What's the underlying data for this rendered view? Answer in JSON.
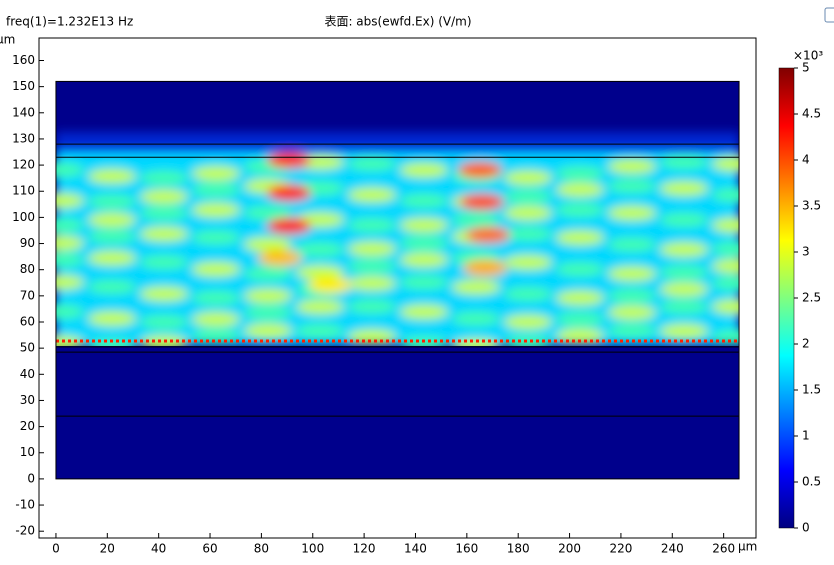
{
  "chart_data": {
    "type": "surface",
    "title": "表面: abs(ewfd.Ex) (V/m)",
    "subtitle": "freq(1)=1.232E13 Hz",
    "x_label": "μm",
    "y_label": "μm",
    "xlim": [
      -6.6,
      272.6
    ],
    "ylim": [
      -22.6,
      168.6
    ],
    "xticks": [
      0,
      20,
      40,
      60,
      80,
      100,
      120,
      140,
      160,
      180,
      200,
      220,
      240,
      260
    ],
    "yticks": [
      -20,
      -10,
      0,
      10,
      20,
      30,
      40,
      50,
      60,
      70,
      80,
      90,
      100,
      110,
      120,
      130,
      140,
      150,
      160
    ],
    "domain": {
      "x": [
        0,
        266
      ],
      "y": [
        0,
        152
      ]
    },
    "boundaries": [
      24,
      48.5,
      50.5,
      123,
      128
    ],
    "colormap": "jet",
    "colorbar": {
      "label": "×10³",
      "lim": [
        0,
        5
      ],
      "ticks": [
        0,
        0.5,
        1,
        1.5,
        2,
        2.5,
        3,
        3.5,
        4,
        4.5,
        5
      ]
    }
  }
}
